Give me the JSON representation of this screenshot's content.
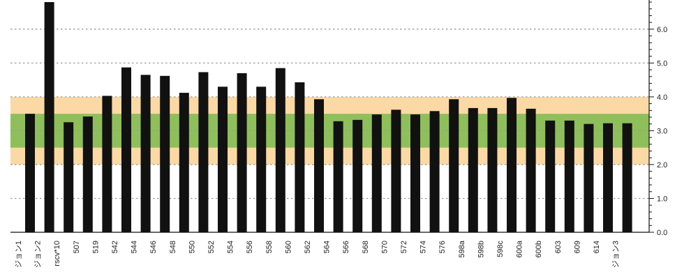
{
  "chart_data": {
    "type": "bar",
    "categories": [
      "ジョン1",
      "ジョン2",
      "rscv*10",
      "507",
      "519",
      "542",
      "544",
      "546",
      "548",
      "550",
      "552",
      "554",
      "556",
      "558",
      "560",
      "562",
      "564",
      "566",
      "568",
      "570",
      "572",
      "574",
      "576",
      "598a",
      "598b",
      "598c",
      "600a",
      "600b",
      "603",
      "609",
      "614",
      "ジョン3"
    ],
    "values": [
      3.5,
      6.8,
      3.25,
      3.42,
      4.03,
      4.87,
      4.65,
      4.62,
      4.12,
      4.73,
      4.3,
      4.7,
      4.3,
      4.85,
      4.43,
      3.93,
      3.28,
      3.32,
      3.48,
      3.62,
      3.48,
      3.58,
      3.93,
      3.67,
      3.67,
      3.97,
      3.65,
      3.3,
      3.3,
      3.2,
      3.22,
      3.22
    ],
    "ylim": [
      0,
      6.8
    ],
    "y_ticks": [
      "0.0",
      "1.0",
      "2.0",
      "3.0",
      "4.0",
      "5.0",
      "6.0"
    ],
    "bands": [
      {
        "from": 2.0,
        "to": 4.0,
        "color": "#fbd9a4"
      },
      {
        "from": 2.5,
        "to": 3.5,
        "color": "#8fbf5a"
      }
    ],
    "bar_color": "#111111",
    "grid": "dotted horizontal",
    "y_axis_side": "right"
  }
}
